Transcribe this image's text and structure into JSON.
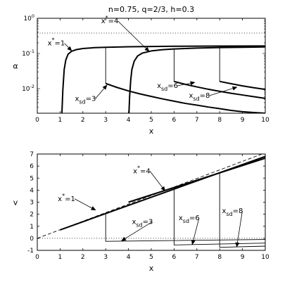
{
  "title": "n=0.75, q=2/3, h=0.3",
  "chart_data": [
    {
      "type": "line",
      "ylabel": "α",
      "xlabel": "x",
      "yscale": "log",
      "xlim": [
        0,
        10
      ],
      "ylim": [
        0.002,
        1
      ],
      "xticks": [
        "0",
        "1",
        "2",
        "3",
        "4",
        "5",
        "6",
        "7",
        "8",
        "9",
        "10"
      ],
      "yticks": [
        {
          "v": 0.01,
          "base": "10",
          "exp": "-2"
        },
        {
          "v": 0.1,
          "base": "10",
          "exp": "-1"
        },
        {
          "v": 1,
          "base": "10",
          "exp": "0"
        }
      ],
      "reference_line": {
        "style": "dotted",
        "y": 0.38
      },
      "series": [
        {
          "id": "xstar1",
          "style": "thick",
          "x": [
            1.08,
            1.12,
            1.18,
            1.25,
            1.35,
            1.5,
            1.7,
            2.0,
            2.5,
            3.0,
            4.0,
            5.0,
            6.0,
            8.0,
            10.0
          ],
          "y": [
            0.002,
            0.009,
            0.035,
            0.065,
            0.095,
            0.115,
            0.128,
            0.138,
            0.146,
            0.15,
            0.155,
            0.158,
            0.16,
            0.162,
            0.163
          ]
        },
        {
          "id": "xstar4",
          "style": "thick",
          "x": [
            4.02,
            4.05,
            4.1,
            4.15,
            4.25,
            4.4,
            4.6,
            5.0,
            5.5,
            6.0,
            7.0,
            8.0,
            9.0,
            10.0
          ],
          "y": [
            0.002,
            0.006,
            0.018,
            0.035,
            0.06,
            0.085,
            0.102,
            0.118,
            0.128,
            0.134,
            0.142,
            0.147,
            0.15,
            0.153
          ]
        },
        {
          "id": "xsd3_jump",
          "style": "thin",
          "x": [
            3,
            3
          ],
          "y": [
            0.15,
            0.014
          ]
        },
        {
          "id": "xsd3_decay",
          "style": "thick",
          "x": [
            3.0,
            3.5,
            4.0,
            4.5,
            5.0,
            5.5,
            6.0,
            6.5,
            7.0,
            7.5,
            8.0,
            8.5,
            9.0,
            9.5,
            10.0
          ],
          "y": [
            0.014,
            0.0108,
            0.0086,
            0.0071,
            0.006,
            0.0051,
            0.0044,
            0.0038,
            0.0034,
            0.003,
            0.0027,
            0.0024,
            0.0022,
            0.0021,
            0.002
          ]
        },
        {
          "id": "xsd6_jump",
          "style": "thin",
          "x": [
            6,
            6
          ],
          "y": [
            0.134,
            0.016
          ]
        },
        {
          "id": "xsd6_decay",
          "style": "thick",
          "x": [
            6.0,
            6.5,
            7.0,
            7.5,
            8.0,
            8.5,
            9.0,
            9.5,
            10.0
          ],
          "y": [
            0.016,
            0.0132,
            0.0112,
            0.0096,
            0.0084,
            0.0074,
            0.0066,
            0.0059,
            0.0053
          ]
        },
        {
          "id": "xsd8_jump",
          "style": "thin",
          "x": [
            8,
            8
          ],
          "y": [
            0.147,
            0.016
          ]
        },
        {
          "id": "xsd8_decay",
          "style": "thick",
          "x": [
            8.0,
            8.5,
            9.0,
            9.5,
            10.0
          ],
          "y": [
            0.016,
            0.0138,
            0.012,
            0.0106,
            0.0095
          ]
        }
      ],
      "annotations": [
        {
          "main": "x",
          "sup": "*",
          "tail": "=1",
          "tx": 0.45,
          "ty": 0.17,
          "ax": 1.5,
          "ay": 0.12
        },
        {
          "main": "x",
          "sup": "*",
          "tail": "=4",
          "tx": 2.8,
          "ty": 0.72,
          "ax": 4.9,
          "ay": 0.115
        },
        {
          "main": "x",
          "sub": "sd",
          "tail": "=3",
          "tx": 1.65,
          "ty": 0.0045,
          "ax": 3.05,
          "ay": 0.0125
        },
        {
          "main": "x",
          "sub": "sd",
          "tail": "=6",
          "tx": 5.25,
          "ty": 0.0105,
          "ax": 6.9,
          "ay": 0.015
        },
        {
          "main": "x",
          "sub": "sd",
          "tail": "=8",
          "tx": 6.65,
          "ty": 0.0055,
          "ax": 8.75,
          "ay": 0.011
        }
      ]
    },
    {
      "type": "line",
      "ylabel": "v",
      "xlabel": "x",
      "xlim": [
        0,
        10
      ],
      "ylim": [
        -1,
        7
      ],
      "xticks": [
        "0",
        "1",
        "2",
        "3",
        "4",
        "5",
        "6",
        "7",
        "8",
        "9",
        "10"
      ],
      "yticks": [
        "-1",
        "0",
        "1",
        "2",
        "3",
        "4",
        "5",
        "6",
        "7"
      ],
      "reference_line": {
        "style": "dotted",
        "y": 0
      },
      "series": [
        {
          "id": "dashed_reference",
          "style": "dashed",
          "x": [
            0,
            10
          ],
          "y": [
            0,
            7.1
          ]
        },
        {
          "id": "xstar1",
          "style": "thick",
          "x": [
            1,
            10
          ],
          "y": [
            0.7,
            6.8
          ]
        },
        {
          "id": "xstar4",
          "style": "thick",
          "x": [
            4,
            10
          ],
          "y": [
            3.0,
            6.65
          ]
        },
        {
          "id": "xsd3",
          "style": "thin",
          "x": [
            3,
            3,
            10
          ],
          "y": [
            2.0,
            -0.25,
            -0.1
          ]
        },
        {
          "id": "xsd6",
          "style": "thin",
          "x": [
            6,
            6,
            10
          ],
          "y": [
            4.15,
            -0.55,
            -0.4
          ]
        },
        {
          "id": "xsd8",
          "style": "thin",
          "x": [
            8,
            8,
            10
          ],
          "y": [
            5.5,
            -0.75,
            -0.65
          ]
        }
      ],
      "annotations": [
        {
          "main": "x",
          "sup": "*",
          "tail": "=1",
          "tx": 0.9,
          "ty": 3.1,
          "ax": 2.55,
          "ay": 2.35
        },
        {
          "main": "x",
          "sup": "*",
          "tail": "=4",
          "tx": 4.2,
          "ty": 5.4,
          "ax": 5.6,
          "ay": 3.95
        },
        {
          "main": "x",
          "sub": "sd",
          "tail": "=3",
          "tx": 4.15,
          "ty": 1.2,
          "ax": 3.7,
          "ay": -0.2
        },
        {
          "main": "x",
          "sub": "sd",
          "tail": "=6",
          "tx": 6.2,
          "ty": 1.5,
          "ax": 6.8,
          "ay": -0.5
        },
        {
          "main": "x",
          "sub": "sd",
          "tail": "=8",
          "tx": 8.1,
          "ty": 2.1,
          "ax": 8.75,
          "ay": -0.7
        }
      ]
    }
  ]
}
